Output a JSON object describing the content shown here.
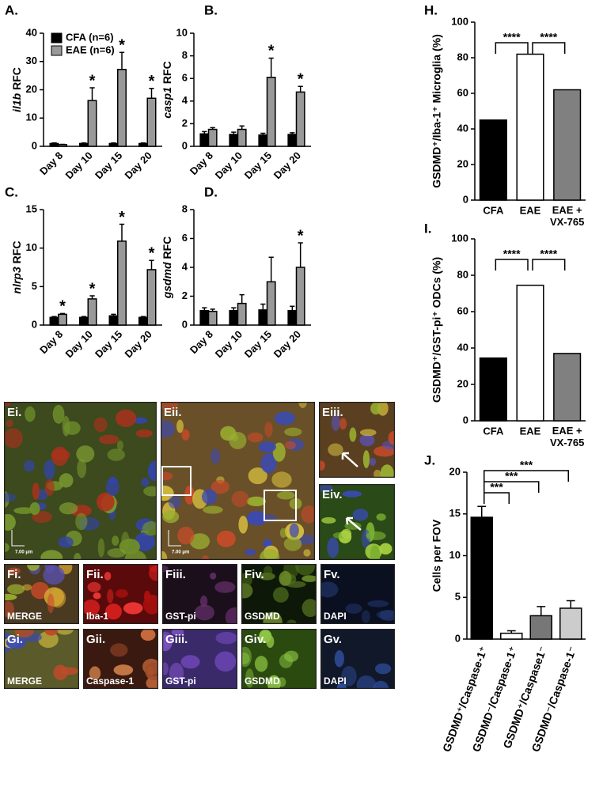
{
  "chart_data": [
    {
      "type": "bar",
      "label": "A.",
      "ylabel": "il1b RFC",
      "categories": [
        "Day 8",
        "Day 10",
        "Day 15",
        "Day 20"
      ],
      "series": [
        {
          "name": "CFA (n=6)",
          "color": "#000000",
          "values": [
            1,
            1,
            1,
            1
          ],
          "errors": [
            0.2,
            0.2,
            0.2,
            0.2
          ]
        },
        {
          "name": "EAE (n=6)",
          "color": "#999999",
          "values": [
            0.6,
            16.2,
            27.2,
            17
          ],
          "errors": [
            0.1,
            4.5,
            6,
            3.5
          ],
          "significance": [
            null,
            "*",
            "*",
            "*"
          ]
        }
      ],
      "ylim": [
        0,
        40
      ],
      "yticks": [
        0,
        10,
        20,
        30,
        40
      ],
      "legend": "upper left"
    },
    {
      "type": "bar",
      "label": "B.",
      "ylabel": "casp1 RFC",
      "categories": [
        "Day 8",
        "Day 10",
        "Day 15",
        "Day 20"
      ],
      "series": [
        {
          "name": "CFA",
          "color": "#000000",
          "values": [
            1.1,
            1.05,
            1.0,
            1.05
          ],
          "errors": [
            0.2,
            0.2,
            0.15,
            0.15
          ]
        },
        {
          "name": "EAE",
          "color": "#999999",
          "values": [
            1.5,
            1.5,
            6.1,
            4.8
          ],
          "errors": [
            0.15,
            0.3,
            1.7,
            0.5
          ],
          "significance": [
            null,
            null,
            "*",
            "*"
          ]
        }
      ],
      "ylim": [
        0,
        10
      ],
      "yticks": [
        0,
        2,
        4,
        6,
        8,
        10
      ]
    },
    {
      "type": "bar",
      "label": "C.",
      "ylabel": "nlrp3 RFC",
      "categories": [
        "Day 8",
        "Day 10",
        "Day 15",
        "Day 20"
      ],
      "series": [
        {
          "name": "CFA",
          "color": "#000000",
          "values": [
            1,
            1,
            1.2,
            1
          ],
          "errors": [
            0.1,
            0.1,
            0.2,
            0.1
          ]
        },
        {
          "name": "EAE",
          "color": "#999999",
          "values": [
            1.4,
            3.4,
            10.9,
            7.2
          ],
          "errors": [
            0.1,
            0.4,
            2.2,
            1.2
          ],
          "significance": [
            "*",
            "*",
            "*",
            "*"
          ]
        }
      ],
      "ylim": [
        0,
        15
      ],
      "yticks": [
        0,
        5,
        10,
        15
      ]
    },
    {
      "type": "bar",
      "label": "D.",
      "ylabel": "gsdmd RFC",
      "categories": [
        "Day 8",
        "Day 10",
        "Day 15",
        "Day 20"
      ],
      "series": [
        {
          "name": "CFA",
          "color": "#000000",
          "values": [
            1.0,
            1.0,
            1.05,
            1.0
          ],
          "errors": [
            0.2,
            0.2,
            0.4,
            0.3
          ]
        },
        {
          "name": "EAE",
          "color": "#999999",
          "values": [
            0.95,
            1.5,
            3.0,
            4.0
          ],
          "errors": [
            0.15,
            0.6,
            1.7,
            1.7
          ],
          "significance": [
            null,
            null,
            null,
            "*"
          ]
        }
      ],
      "ylim": [
        0,
        8
      ],
      "yticks": [
        0,
        2,
        4,
        6,
        8
      ]
    },
    {
      "type": "bar",
      "label": "H.",
      "ylabel": "GSDMD⁺/Iba-1⁺ Microglia (%)",
      "categories": [
        "CFA",
        "EAE",
        "EAE + VX-765"
      ],
      "values": [
        45,
        82,
        62
      ],
      "colors": [
        "#000000",
        "#ffffff",
        "#808080"
      ],
      "comparisons": [
        {
          "from": 0,
          "to": 1,
          "label": "****"
        },
        {
          "from": 1,
          "to": 2,
          "label": "****"
        }
      ],
      "ylim": [
        0,
        100
      ],
      "yticks": [
        0,
        20,
        40,
        60,
        80,
        100
      ]
    },
    {
      "type": "bar",
      "label": "I.",
      "ylabel": "GSDMD⁺/GST-pi⁺ ODCs (%)",
      "categories": [
        "CFA",
        "EAE",
        "EAE + VX-765"
      ],
      "values": [
        34.5,
        74.5,
        37
      ],
      "colors": [
        "#000000",
        "#ffffff",
        "#808080"
      ],
      "comparisons": [
        {
          "from": 0,
          "to": 1,
          "label": "****"
        },
        {
          "from": 1,
          "to": 2,
          "label": "****"
        }
      ],
      "ylim": [
        0,
        100
      ],
      "yticks": [
        0,
        20,
        40,
        60,
        80,
        100
      ]
    },
    {
      "type": "bar",
      "label": "J.",
      "ylabel": "Cells per FOV",
      "categories": [
        "GSDMD⁺/Caspase-1⁺",
        "GSDMD⁻/Caspase-1⁺",
        "GSDMD⁺/Caspase1⁻",
        "GSDMD⁻/Caspase-1⁻"
      ],
      "values": [
        14.6,
        0.7,
        2.8,
        3.7
      ],
      "errors": [
        1.3,
        0.3,
        1.1,
        0.9
      ],
      "colors": [
        "#000000",
        "#ffffff",
        "#777777",
        "#cccccc"
      ],
      "comparisons": [
        {
          "from": 0,
          "to": 1,
          "label": "***"
        },
        {
          "from": 0,
          "to": 2,
          "label": "***"
        },
        {
          "from": 0,
          "to": 3,
          "label": "***"
        }
      ],
      "ylim": [
        0,
        20
      ],
      "yticks": [
        0,
        5,
        10,
        15,
        20
      ]
    }
  ],
  "micrographs": [
    {
      "label": "Ei.",
      "scale_bar": "7.00 μm"
    },
    {
      "label": "Eii.",
      "scale_bar": "7.00 μm"
    },
    {
      "label": "Eiii."
    },
    {
      "label": "Eiv."
    },
    {
      "label": "Fi.",
      "caption": "MERGE"
    },
    {
      "label": "Fii.",
      "caption": "Iba-1"
    },
    {
      "label": "Fiii.",
      "caption": "GST-pi"
    },
    {
      "label": "Fiv.",
      "caption": "GSDMD"
    },
    {
      "label": "Fv.",
      "caption": "DAPI"
    },
    {
      "label": "Gi.",
      "caption": "MERGE"
    },
    {
      "label": "Gii.",
      "caption": "Caspase-1"
    },
    {
      "label": "Giii.",
      "caption": "GST-pi"
    },
    {
      "label": "Giv.",
      "caption": "GSDMD"
    },
    {
      "label": "Gv.",
      "caption": "DAPI"
    }
  ]
}
